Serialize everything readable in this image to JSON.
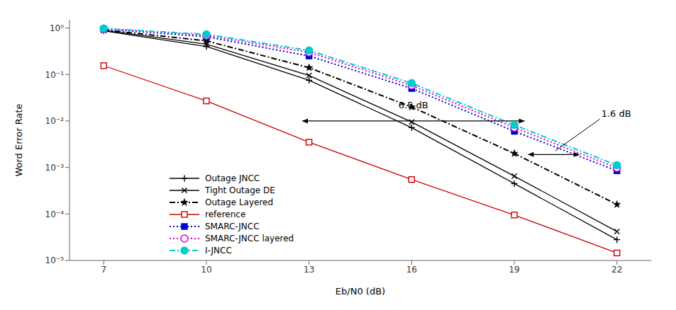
{
  "chart_data": {
    "type": "line",
    "xlabel": "Eb/N0 (dB)",
    "ylabel": "Word Error Rate",
    "log": "y",
    "grid": false,
    "legend": "lower left",
    "xlim": [
      6.0,
      23.0
    ],
    "ylim": [
      1e-05,
      1.5
    ],
    "xticks": [
      7,
      10,
      13,
      16,
      19,
      22
    ],
    "yticks": [
      {
        "value": 1e-05,
        "label": "10⁻⁵"
      },
      {
        "value": 0.0001,
        "label": "10⁻⁴"
      },
      {
        "value": 0.001,
        "label": "10⁻³"
      },
      {
        "value": 0.01,
        "label": "10⁻²"
      },
      {
        "value": 0.1,
        "label": "10⁻¹"
      },
      {
        "value": 1,
        "label": "10⁰"
      }
    ],
    "x": [
      7,
      10,
      13,
      16,
      19,
      22
    ],
    "series": [
      {
        "name": "Outage JNCC",
        "color": "#000000",
        "marker": "plus",
        "line_style": "solid",
        "values": [
          0.87,
          0.4,
          0.075,
          0.0072,
          0.00045,
          2.8e-05
        ]
      },
      {
        "name": "Tight Outage DE",
        "color": "#000000",
        "marker": "x",
        "line_style": "solid",
        "values": [
          0.89,
          0.45,
          0.095,
          0.0095,
          0.00065,
          4.2e-05
        ]
      },
      {
        "name": "Outage Layered",
        "color": "#000000",
        "marker": "star",
        "line_style": "dashdot",
        "values": [
          0.91,
          0.53,
          0.14,
          0.02,
          0.002,
          0.00016
        ]
      },
      {
        "name": "reference",
        "color": "#cc0000",
        "marker": "open-square",
        "line_style": "solid",
        "values": [
          0.155,
          0.027,
          0.0035,
          0.00055,
          9.5e-05,
          1.45e-05
        ]
      },
      {
        "name": "SMARC-JNCC",
        "color": "#0000cc",
        "marker": "square",
        "line_style": "dotted",
        "values": [
          0.955,
          0.65,
          0.25,
          0.05,
          0.006,
          0.00085
        ]
      },
      {
        "name": "SMARC-JNCC layered",
        "color": "#dd00dd",
        "marker": "open-circle",
        "line_style": "dotted",
        "values": [
          0.965,
          0.69,
          0.3,
          0.058,
          0.0072,
          0.00098
        ]
      },
      {
        "name": "I-JNCC",
        "color": "#00cccc",
        "marker": "circle",
        "line_style": "dashdot",
        "values": [
          0.975,
          0.73,
          0.33,
          0.065,
          0.0082,
          0.00112
        ]
      }
    ],
    "annotations": [
      {
        "text": "6.5 dB",
        "x": 16.05,
        "y": 0.017,
        "arrow": {
          "x": [
            12.8,
            19.3
          ],
          "y": 0.01
        }
      },
      {
        "text": "1.6 dB",
        "x": 21.5,
        "y": 0.011,
        "arrow": {
          "x": [
            19.4,
            20.9
          ],
          "y": 0.0019
        },
        "pointer": {
          "x": 20.2,
          "y": 0.00228
        }
      }
    ]
  }
}
